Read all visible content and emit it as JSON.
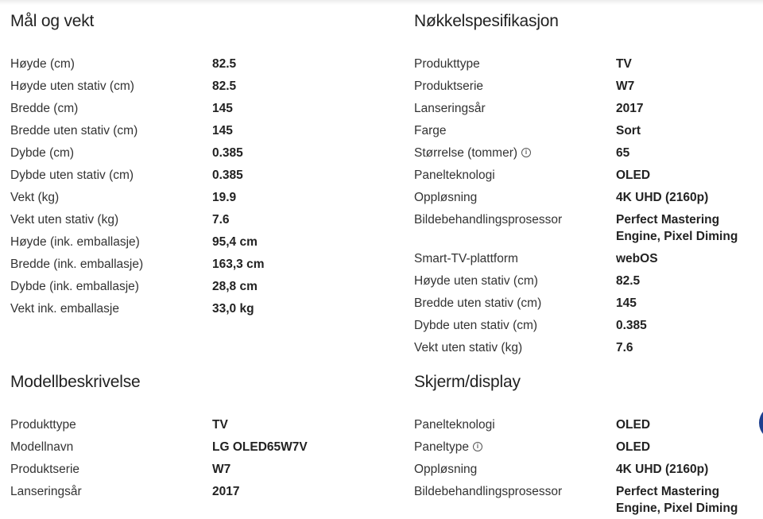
{
  "sections": [
    {
      "title": "Mål og vekt",
      "rows": [
        {
          "label": "Høyde (cm)",
          "value": "82.5"
        },
        {
          "label": "Høyde uten stativ (cm)",
          "value": "82.5"
        },
        {
          "label": "Bredde (cm)",
          "value": "145"
        },
        {
          "label": "Bredde uten stativ (cm)",
          "value": "145"
        },
        {
          "label": "Dybde (cm)",
          "value": "0.385"
        },
        {
          "label": "Dybde uten stativ (cm)",
          "value": "0.385"
        },
        {
          "label": "Vekt (kg)",
          "value": "19.9"
        },
        {
          "label": "Vekt uten stativ (kg)",
          "value": "7.6"
        },
        {
          "label": "Høyde (ink. emballasje)",
          "value": "95,4 cm"
        },
        {
          "label": "Bredde (ink. emballasje)",
          "value": "163,3 cm"
        },
        {
          "label": "Dybde (ink. emballasje)",
          "value": "28,8 cm"
        },
        {
          "label": "Vekt ink. emballasje",
          "value": "33,0 kg"
        }
      ]
    },
    {
      "title": "Nøkkelspesifikasjon",
      "rows": [
        {
          "label": "Produkttype",
          "value": "TV"
        },
        {
          "label": "Produktserie",
          "value": "W7"
        },
        {
          "label": "Lanseringsår",
          "value": "2017"
        },
        {
          "label": "Farge",
          "value": "Sort"
        },
        {
          "label": "Størrelse (tommer)",
          "value": "65",
          "info": true
        },
        {
          "label": "Panelteknologi",
          "value": "OLED"
        },
        {
          "label": "Oppløsning",
          "value": "4K UHD (2160p)"
        },
        {
          "label": "Bildebehandlingsprosessor",
          "value": "Perfect Mastering Engine, Pixel Diming"
        },
        {
          "label": "Smart-TV-plattform",
          "value": "webOS"
        },
        {
          "label": "Høyde uten stativ (cm)",
          "value": "82.5"
        },
        {
          "label": "Bredde uten stativ (cm)",
          "value": "145"
        },
        {
          "label": "Dybde uten stativ (cm)",
          "value": "0.385"
        },
        {
          "label": "Vekt uten stativ (kg)",
          "value": "7.6"
        }
      ]
    },
    {
      "title": "Modellbeskrivelse",
      "rows": [
        {
          "label": "Produkttype",
          "value": "TV"
        },
        {
          "label": "Modellnavn",
          "value": "LG OLED65W7V"
        },
        {
          "label": "Produktserie",
          "value": "W7"
        },
        {
          "label": "Lanseringsår",
          "value": "2017"
        }
      ]
    },
    {
      "title": "Skjerm/display",
      "rows": [
        {
          "label": "Panelteknologi",
          "value": "OLED"
        },
        {
          "label": "Paneltype",
          "value": "OLED",
          "info": true
        },
        {
          "label": "Oppløsning",
          "value": "4K UHD (2160p)"
        },
        {
          "label": "Bildebehandlingsprosessor",
          "value": "Perfect Mastering Engine, Pixel Diming"
        }
      ]
    }
  ]
}
